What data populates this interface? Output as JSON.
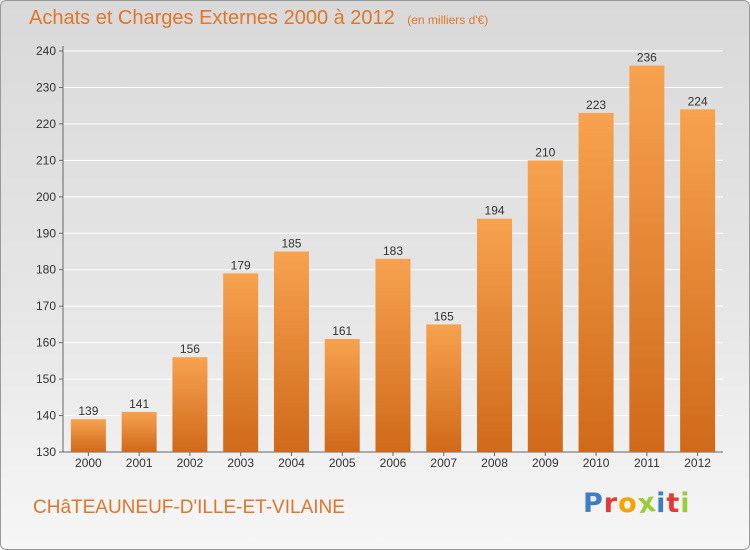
{
  "header": {
    "title": "Achats et Charges Externes 2000 à 2012",
    "unit": "(en milliers d'€)"
  },
  "footer": {
    "city": "CHâTEAUNEUF-D'ILLE-ET-VILAINE",
    "brand_letters": [
      "P",
      "r",
      "o",
      "x",
      "i",
      "t",
      "i"
    ],
    "brand_colors": [
      "#3d7dc8",
      "#e53935",
      "#f4a300",
      "#9ccc3a",
      "#3d7dc8",
      "#e53935",
      "#9ccc3a"
    ]
  },
  "colors": {
    "bar_light": "#f7a24f",
    "bar_dark": "#cf6a1a",
    "accent": "#e0762a",
    "grid": "#ffffff",
    "text": "#333333"
  },
  "chart_data": {
    "type": "bar",
    "title": "Achats et Charges Externes 2000 à 2012",
    "subtitle": "(en milliers d'€)",
    "categories": [
      "2000",
      "2001",
      "2002",
      "2003",
      "2004",
      "2005",
      "2006",
      "2007",
      "2008",
      "2009",
      "2010",
      "2011",
      "2012"
    ],
    "values": [
      139,
      141,
      156,
      179,
      185,
      161,
      183,
      165,
      194,
      210,
      223,
      236,
      224
    ],
    "ylim": [
      130,
      240
    ],
    "yticks": [
      130,
      140,
      150,
      160,
      170,
      180,
      190,
      200,
      210,
      220,
      230,
      240
    ],
    "grid": true,
    "data_labels": true
  }
}
